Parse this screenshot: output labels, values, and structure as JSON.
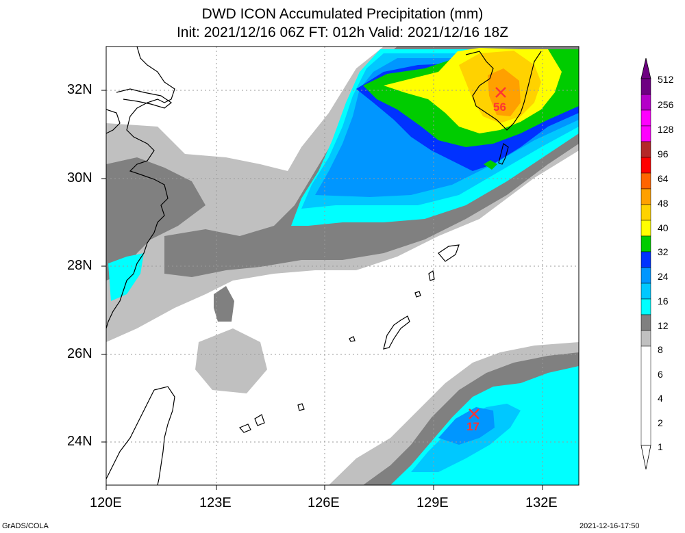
{
  "title": {
    "line1": "DWD ICON Accumulated Precipitation (mm)",
    "line2": "Init: 2021/12/16 06Z  FT: 012h  Valid: 2021/12/16 18Z"
  },
  "axes": {
    "lon_labels": [
      "120E",
      "123E",
      "126E",
      "129E",
      "132E"
    ],
    "lat_labels": [
      "32N",
      "30N",
      "28N",
      "26N",
      "24N"
    ]
  },
  "colorbar": {
    "labels": [
      "512",
      "256",
      "128",
      "96",
      "64",
      "48",
      "40",
      "32",
      "24",
      "16",
      "12",
      "8",
      "6",
      "4",
      "2",
      "1"
    ],
    "colors": {
      "c1": "#c0c0c0",
      "c2": "#808080",
      "c4": "#00ffff",
      "c6": "#00c8ff",
      "c8": "#0096ff",
      "c12": "#0032ff",
      "c16": "#00cc00",
      "c24": "#ffff00",
      "c32": "#ffd200",
      "c40": "#ffa000",
      "c48": "#ff6400",
      "c64": "#ff0000",
      "c96": "#b42828",
      "c128": "#ff00ff",
      "c256": "#b400c8",
      "c512": "#6e0082"
    }
  },
  "markers": [
    {
      "label": "56"
    },
    {
      "label": "17"
    }
  ],
  "footer": {
    "left": "GrADS/COLA",
    "right": "2021-12-16-17:50"
  }
}
